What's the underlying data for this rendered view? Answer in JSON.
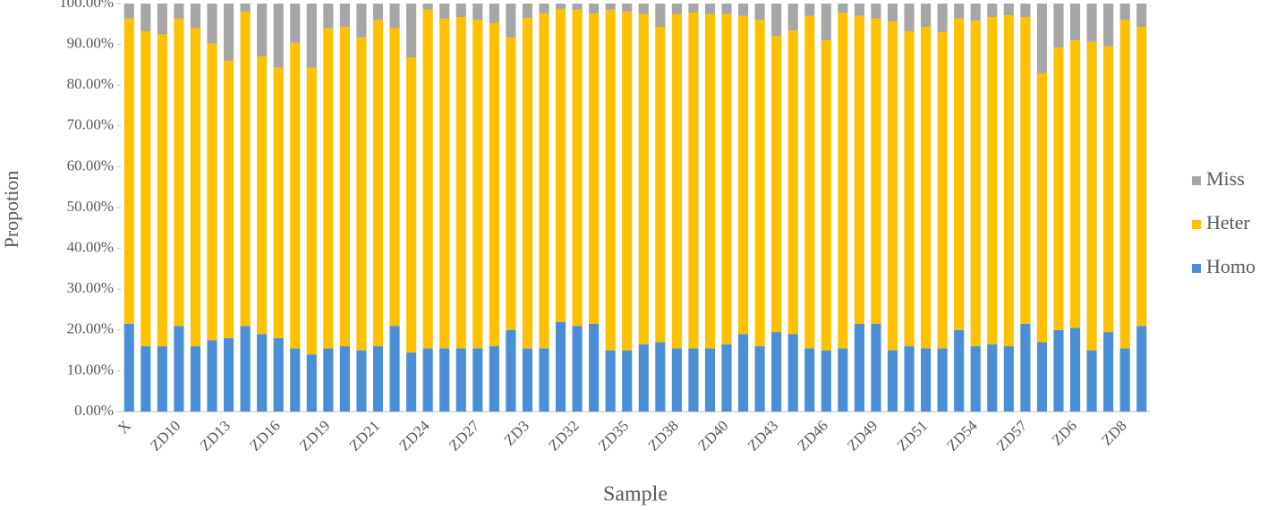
{
  "chart_data": {
    "type": "stacked_bar",
    "ylabel": "Propotion",
    "xlabel": "Sample",
    "categories": [
      "X",
      null,
      null,
      "ZD10",
      null,
      null,
      "ZD13",
      null,
      null,
      "ZD16",
      null,
      null,
      "ZD19",
      null,
      null,
      "ZD21",
      null,
      null,
      "ZD24",
      null,
      null,
      "ZD27",
      null,
      null,
      "ZD3",
      null,
      null,
      "ZD32",
      null,
      null,
      "ZD35",
      null,
      null,
      "ZD38",
      null,
      null,
      "ZD40",
      null,
      null,
      "ZD43",
      null,
      null,
      "ZD46",
      null,
      null,
      "ZD49",
      null,
      null,
      "ZD51",
      null,
      null,
      "ZD54",
      null,
      null,
      "ZD57",
      null,
      null,
      "ZD6",
      null,
      null,
      "ZD8",
      null
    ],
    "series": [
      {
        "name": "Homo",
        "color": "#4a8fd6",
        "values": [
          21.5,
          16,
          16,
          21,
          16,
          17.5,
          18,
          21,
          19,
          18,
          15.5,
          14,
          15.5,
          16,
          15,
          16,
          21,
          14.5,
          15.5,
          15.5,
          15.5,
          15.5,
          16,
          20,
          15.5,
          15.5,
          22,
          21,
          21.5,
          15,
          15,
          16.5,
          17,
          15.5,
          15.5,
          15.5,
          16.5,
          19,
          16,
          19.5,
          19,
          15.5,
          15,
          15.5,
          21.5,
          21.5,
          15,
          16,
          15.5,
          15.5,
          20,
          16,
          16.5,
          16,
          21.5,
          17,
          20,
          20.5,
          15,
          19.5,
          15.5,
          21
        ]
      },
      {
        "name": "Heter",
        "color": "#ffc000",
        "values": [
          74.8,
          77.2,
          76.4,
          75.3,
          78,
          72.7,
          68,
          77,
          68,
          66.3,
          74.9,
          70.3,
          78.5,
          78.3,
          76.7,
          80,
          73,
          72.3,
          83,
          80.8,
          81.2,
          80.5,
          79.2,
          71.7,
          81,
          82.1,
          76.7,
          77.5,
          76.1,
          83.5,
          83,
          80.9,
          77.3,
          81.9,
          82.3,
          81.9,
          80.9,
          78,
          80,
          72.6,
          74.4,
          81.5,
          76,
          82.3,
          75.5,
          74.8,
          80.6,
          77.2,
          78.8,
          77.5,
          76.3,
          79.8,
          80.2,
          81.1,
          75.2,
          65.9,
          69.2,
          70.5,
          75.6,
          70,
          80.5,
          73.3
        ]
      },
      {
        "name": "Miss",
        "color": "#a6a6a6",
        "values": [
          3.7,
          6.8,
          7.6,
          3.7,
          6,
          9.8,
          14,
          2,
          13,
          15.7,
          9.6,
          15.7,
          6,
          5.7,
          8.3,
          4,
          6,
          13.2,
          1.5,
          3.7,
          3.3,
          4,
          4.8,
          8.3,
          3.5,
          2.4,
          1.3,
          1.5,
          2.4,
          1.5,
          2,
          2.6,
          5.7,
          2.6,
          2.2,
          2.6,
          2.6,
          3,
          4,
          7.9,
          6.6,
          3,
          9,
          2.2,
          3,
          3.7,
          4.4,
          6.8,
          5.7,
          7,
          3.7,
          4.2,
          3.3,
          2.9,
          3.3,
          17.1,
          10.8,
          9,
          9.4,
          10.5,
          4,
          5.7
        ]
      }
    ],
    "ylim": [
      0,
      100
    ],
    "yticks": [
      {
        "value": 0,
        "label": "0.00%"
      },
      {
        "value": 10,
        "label": "10.00%"
      },
      {
        "value": 20,
        "label": "20.00%"
      },
      {
        "value": 30,
        "label": "30.00%"
      },
      {
        "value": 40,
        "label": "40.00%"
      },
      {
        "value": 50,
        "label": "50.00%"
      },
      {
        "value": 60,
        "label": "60.00%"
      },
      {
        "value": 70,
        "label": "70.00%"
      },
      {
        "value": 80,
        "label": "80.00%"
      },
      {
        "value": 90,
        "label": "90.00%"
      },
      {
        "value": 100,
        "label": "100.00%"
      }
    ],
    "legend": "right"
  }
}
